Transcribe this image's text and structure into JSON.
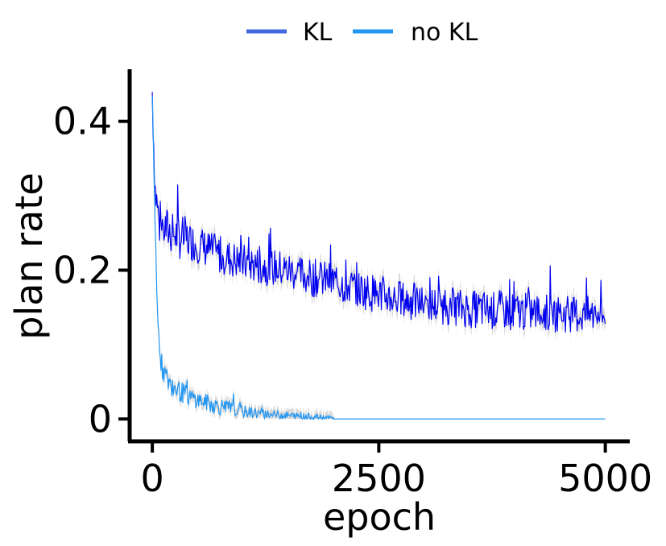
{
  "chart_data": {
    "type": "line",
    "xlabel": "epoch",
    "ylabel": "plan rate",
    "xlim": [
      -250,
      5270
    ],
    "ylim": [
      -0.03,
      0.47
    ],
    "xticks": [
      0,
      2500,
      5000
    ],
    "xtick_labels": [
      "0",
      "2500",
      "5000"
    ],
    "yticks": [
      0,
      0.2,
      0.4
    ],
    "ytick_labels": [
      "0",
      "0.2",
      "0.4"
    ],
    "grid": false,
    "legend_position": "top-center",
    "series": [
      {
        "name": "KL",
        "legend_color": "#4169e1",
        "line_color": "#0000ee",
        "band_color": "#d0d0d0",
        "points": [
          [
            0,
            0.44
          ],
          [
            30,
            0.31
          ],
          [
            80,
            0.26
          ],
          [
            150,
            0.255
          ],
          [
            300,
            0.245
          ],
          [
            500,
            0.235
          ],
          [
            750,
            0.22
          ],
          [
            1000,
            0.21
          ],
          [
            1250,
            0.205
          ],
          [
            1500,
            0.2
          ],
          [
            1750,
            0.19
          ],
          [
            2000,
            0.185
          ],
          [
            2250,
            0.175
          ],
          [
            2500,
            0.168
          ],
          [
            2750,
            0.16
          ],
          [
            3000,
            0.155
          ],
          [
            3250,
            0.152
          ],
          [
            3500,
            0.148
          ],
          [
            3750,
            0.146
          ],
          [
            4000,
            0.145
          ],
          [
            4250,
            0.143
          ],
          [
            4500,
            0.142
          ],
          [
            4750,
            0.14
          ],
          [
            5000,
            0.14
          ]
        ],
        "noise": 0.026
      },
      {
        "name": "no KL",
        "legend_color": "#2196f3",
        "line_color": "#2196f3",
        "band_color": "#d0d0d0",
        "points": [
          [
            0,
            0.44
          ],
          [
            20,
            0.3
          ],
          [
            60,
            0.13
          ],
          [
            100,
            0.07
          ],
          [
            200,
            0.045
          ],
          [
            400,
            0.03
          ],
          [
            700,
            0.018
          ],
          [
            1000,
            0.01
          ],
          [
            1300,
            0.006
          ],
          [
            1600,
            0.004
          ],
          [
            1900,
            0.002
          ],
          [
            2100,
            0
          ],
          [
            5000,
            0
          ]
        ],
        "noise": 0.012
      }
    ]
  }
}
